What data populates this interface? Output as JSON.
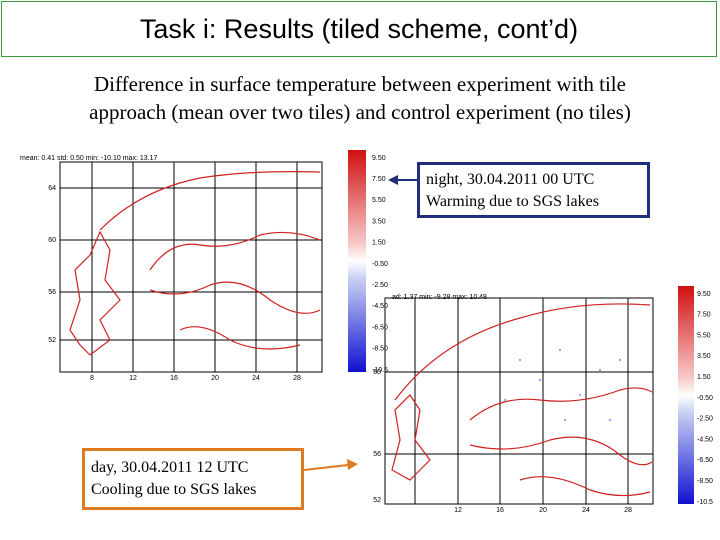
{
  "title": "Task i: Results (tiled scheme, cont’d)",
  "subtitle": [
    "Difference in surface temperature between experiment with tile",
    "approach (mean over two tiles) and control experiment (no tiles)"
  ],
  "maps": [
    {
      "stats": "mean:  0.41  std:  0.50   min:  -10.10   max:  13.17",
      "x_labels": [
        "8",
        "12",
        "16",
        "20",
        "24",
        "28"
      ],
      "y_labels": [
        "64",
        "60",
        "56",
        "52"
      ],
      "colorbar": [
        "9.50",
        "7.50",
        "5.50",
        "3.50",
        "1.50",
        "-0.50",
        "-2.50",
        "-4.50",
        "-6.50",
        "-8.50",
        "-10.5"
      ]
    },
    {
      "stats": "ad:  1.37   min:  -9.28   max:  10.48",
      "x_labels": [
        "12",
        "16",
        "20",
        "24",
        "28"
      ],
      "y_labels": [
        "60",
        "56",
        "52"
      ],
      "colorbar": [
        "9.50",
        "7.50",
        "5.50",
        "3.50",
        "1.50",
        "-0.50",
        "-2.50",
        "-4.50",
        "-6.50",
        "-8.50",
        "-10.5"
      ]
    }
  ],
  "callouts": [
    {
      "line1": "night, 30.04.2011 00 UTC",
      "line2": "Warming due to SGS lakes"
    },
    {
      "line1": "day, 30.04.2011 12 UTC",
      "line2": "Cooling due to SGS lakes"
    }
  ]
}
